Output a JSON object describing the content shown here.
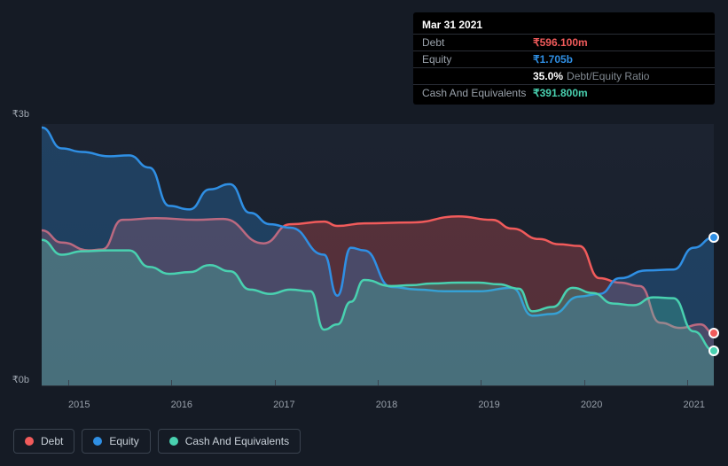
{
  "tooltip": {
    "date": "Mar 31 2021",
    "rows": [
      {
        "label": "Debt",
        "value": "₹596.100m",
        "color": "#f15b5b"
      },
      {
        "label": "Equity",
        "value": "₹1.705b",
        "color": "#2f8fe4"
      },
      {
        "label": "",
        "value": "35.0%",
        "sub": "Debt/Equity Ratio",
        "color": "#ffffff"
      },
      {
        "label": "Cash And Equivalents",
        "value": "₹391.800m",
        "color": "#49d1b0"
      }
    ]
  },
  "chart": {
    "type": "area",
    "background_color": "#151b25",
    "plot_background": "#1c2330",
    "grid_color": "#2e343e",
    "yaxis": {
      "min": 0,
      "max": 3000,
      "labels": [
        "₹3b",
        "₹0b"
      ],
      "currency_prefix": "₹"
    },
    "xaxis": {
      "labels": [
        "2015",
        "2016",
        "2017",
        "2018",
        "2019",
        "2020",
        "2021"
      ]
    },
    "label_fontsize": 11,
    "label_color": "#98a0aa",
    "line_width": 2.5,
    "fill_opacity": 0.28,
    "series": [
      {
        "name": "Debt",
        "color": "#f15b5b",
        "points": [
          [
            0,
            1780
          ],
          [
            3,
            1640
          ],
          [
            7,
            1550
          ],
          [
            9,
            1560
          ],
          [
            12,
            1900
          ],
          [
            17,
            1920
          ],
          [
            23,
            1900
          ],
          [
            27,
            1910
          ],
          [
            33,
            1630
          ],
          [
            37,
            1850
          ],
          [
            42,
            1880
          ],
          [
            44,
            1830
          ],
          [
            48,
            1860
          ],
          [
            55,
            1870
          ],
          [
            62,
            1940
          ],
          [
            67,
            1900
          ],
          [
            70,
            1800
          ],
          [
            74,
            1680
          ],
          [
            77,
            1620
          ],
          [
            80,
            1600
          ],
          [
            83,
            1230
          ],
          [
            86,
            1180
          ],
          [
            89,
            1140
          ],
          [
            92,
            720
          ],
          [
            95,
            660
          ],
          [
            98,
            700
          ],
          [
            100,
            600
          ]
        ],
        "endpoint": true
      },
      {
        "name": "Equity",
        "color": "#2f8fe4",
        "points": [
          [
            0,
            2960
          ],
          [
            3,
            2720
          ],
          [
            6,
            2680
          ],
          [
            10,
            2630
          ],
          [
            13,
            2640
          ],
          [
            16,
            2500
          ],
          [
            19,
            2060
          ],
          [
            22,
            2020
          ],
          [
            25,
            2250
          ],
          [
            28,
            2310
          ],
          [
            31,
            1980
          ],
          [
            34,
            1850
          ],
          [
            37,
            1810
          ],
          [
            42,
            1500
          ],
          [
            44,
            1030
          ],
          [
            46,
            1580
          ],
          [
            48,
            1550
          ],
          [
            52,
            1130
          ],
          [
            56,
            1100
          ],
          [
            60,
            1080
          ],
          [
            65,
            1080
          ],
          [
            70,
            1120
          ],
          [
            73,
            800
          ],
          [
            76,
            820
          ],
          [
            80,
            1020
          ],
          [
            83,
            1050
          ],
          [
            86,
            1230
          ],
          [
            90,
            1320
          ],
          [
            94,
            1330
          ],
          [
            97,
            1580
          ],
          [
            100,
            1700
          ]
        ],
        "endpoint": true
      },
      {
        "name": "Cash And Equivalents",
        "color": "#49d1b0",
        "points": [
          [
            0,
            1670
          ],
          [
            3,
            1500
          ],
          [
            6,
            1540
          ],
          [
            10,
            1550
          ],
          [
            13,
            1550
          ],
          [
            16,
            1360
          ],
          [
            19,
            1280
          ],
          [
            22,
            1300
          ],
          [
            25,
            1380
          ],
          [
            28,
            1310
          ],
          [
            31,
            1100
          ],
          [
            34,
            1050
          ],
          [
            37,
            1100
          ],
          [
            40,
            1080
          ],
          [
            42,
            640
          ],
          [
            44,
            700
          ],
          [
            46,
            960
          ],
          [
            48,
            1210
          ],
          [
            52,
            1140
          ],
          [
            55,
            1150
          ],
          [
            58,
            1170
          ],
          [
            62,
            1180
          ],
          [
            65,
            1180
          ],
          [
            68,
            1160
          ],
          [
            71,
            1110
          ],
          [
            73,
            850
          ],
          [
            76,
            900
          ],
          [
            79,
            1120
          ],
          [
            82,
            1060
          ],
          [
            85,
            940
          ],
          [
            88,
            920
          ],
          [
            91,
            1010
          ],
          [
            94,
            1000
          ],
          [
            97,
            620
          ],
          [
            100,
            400
          ]
        ],
        "endpoint": true
      }
    ]
  },
  "legend": {
    "items": [
      {
        "label": "Debt",
        "color": "#f15b5b"
      },
      {
        "label": "Equity",
        "color": "#2f8fe4"
      },
      {
        "label": "Cash And Equivalents",
        "color": "#49d1b0"
      }
    ],
    "border_color": "#3a434f",
    "text_color": "#c9d1d9",
    "fontsize": 12
  }
}
